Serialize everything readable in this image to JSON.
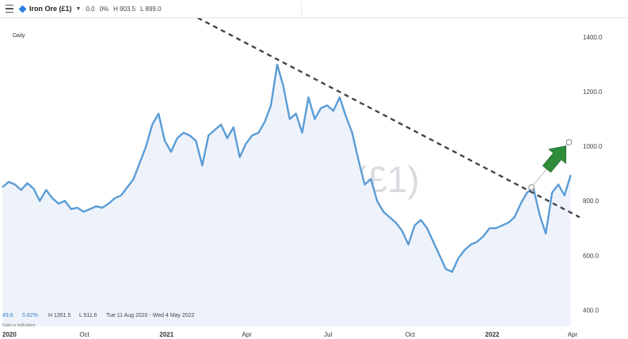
{
  "header": {
    "symbol": "Iron Ore (£1)",
    "change": "0.0",
    "change_pct": "0%",
    "high": "H 903.5",
    "low": "L 899.0"
  },
  "chart_data": {
    "type": "area",
    "title": "Iron Ore (£1)",
    "interval": "Daily",
    "ylim": [
      340,
      1470
    ],
    "y_ticks": [
      "1400.0",
      "1200.0",
      "1000.0",
      "800.0",
      "600.0",
      "400.0"
    ],
    "y_tick_values": [
      1400,
      1200,
      1000,
      800,
      600,
      400
    ],
    "x_ticks": [
      {
        "label": "2020",
        "date": "2020-07-01",
        "bold": true
      },
      {
        "label": "Oct",
        "date": "2020-10-01",
        "bold": false
      },
      {
        "label": "2021",
        "date": "2021-01-01",
        "bold": true
      },
      {
        "label": "Apr",
        "date": "2021-04-01",
        "bold": false
      },
      {
        "label": "Jul",
        "date": "2021-07-01",
        "bold": false
      },
      {
        "label": "Oct",
        "date": "2021-10-01",
        "bold": false
      },
      {
        "label": "2022",
        "date": "2022-01-01",
        "bold": true
      },
      {
        "label": "Apr",
        "date": "2022-04-01",
        "bold": false
      }
    ],
    "xlim": [
      "2020-07-01",
      "2022-04-09"
    ],
    "series": [
      {
        "dates": [
          "2020-07-01",
          "2020-07-08",
          "2020-07-15",
          "2020-07-22",
          "2020-07-29",
          "2020-08-05",
          "2020-08-12",
          "2020-08-19",
          "2020-08-26",
          "2020-09-02",
          "2020-09-09",
          "2020-09-16",
          "2020-09-23",
          "2020-09-30",
          "2020-10-07",
          "2020-10-14",
          "2020-10-21",
          "2020-10-28",
          "2020-11-04",
          "2020-11-11",
          "2020-11-18",
          "2020-11-25",
          "2020-12-02",
          "2020-12-09",
          "2020-12-16",
          "2020-12-23",
          "2020-12-30",
          "2021-01-06",
          "2021-01-13",
          "2021-01-20",
          "2021-01-27",
          "2021-02-03",
          "2021-02-10",
          "2021-02-17",
          "2021-02-24",
          "2021-03-03",
          "2021-03-10",
          "2021-03-17",
          "2021-03-24",
          "2021-03-31",
          "2021-04-07",
          "2021-04-14",
          "2021-04-21",
          "2021-04-28",
          "2021-05-05",
          "2021-05-12",
          "2021-05-19",
          "2021-05-26",
          "2021-06-02",
          "2021-06-09",
          "2021-06-16",
          "2021-06-23",
          "2021-06-30",
          "2021-07-07",
          "2021-07-14",
          "2021-07-21",
          "2021-07-28",
          "2021-08-04",
          "2021-08-11",
          "2021-08-18",
          "2021-08-25",
          "2021-09-01",
          "2021-09-08",
          "2021-09-15",
          "2021-09-22",
          "2021-09-29",
          "2021-10-06",
          "2021-10-13",
          "2021-10-20",
          "2021-10-27",
          "2021-11-03",
          "2021-11-10",
          "2021-11-17",
          "2021-11-24",
          "2021-12-01",
          "2021-12-08",
          "2021-12-15",
          "2021-12-22",
          "2021-12-29",
          "2022-01-05",
          "2022-01-12",
          "2022-01-19",
          "2022-01-26",
          "2022-02-02",
          "2022-02-09",
          "2022-02-16",
          "2022-02-23",
          "2022-03-02",
          "2022-03-09",
          "2022-03-16",
          "2022-03-23",
          "2022-03-30"
        ],
        "values": [
          850,
          870,
          860,
          840,
          865,
          845,
          800,
          840,
          810,
          790,
          800,
          770,
          775,
          760,
          770,
          780,
          775,
          790,
          810,
          820,
          850,
          880,
          940,
          1000,
          1080,
          1120,
          1020,
          980,
          1030,
          1050,
          1040,
          1020,
          930,
          1040,
          1060,
          1080,
          1030,
          1070,
          960,
          1010,
          1040,
          1050,
          1090,
          1150,
          1300,
          1220,
          1100,
          1120,
          1050,
          1180,
          1100,
          1140,
          1150,
          1130,
          1180,
          1110,
          1050,
          950,
          860,
          880,
          800,
          760,
          740,
          720,
          690,
          640,
          710,
          730,
          700,
          650,
          600,
          550,
          540,
          590,
          620,
          640,
          650,
          670,
          700,
          700,
          710,
          720,
          740,
          790,
          830,
          850,
          750,
          680,
          830,
          860,
          820,
          895
        ]
      }
    ],
    "trendline": {
      "start": [
        "2020-12-15",
        1560
      ],
      "end": [
        "2022-04-09",
        740
      ]
    },
    "annotation": {
      "type": "up-arrow",
      "from": [
        "2022-02-14",
        850
      ],
      "to": [
        "2022-03-28",
        1015
      ],
      "arrow_color": "#2e8b3a"
    },
    "stats": {
      "last": "49.6",
      "last_pct": "5.82%",
      "high": "H 1351.5",
      "low": "L 511.6",
      "range": "Tue 11 Aug 2020 - Wed 4 May 2022",
      "note": "Data is indicative"
    },
    "colors": {
      "line": "#5a9cd6",
      "fill": "#eef3fb",
      "trend": "#444444"
    },
    "grid": false
  }
}
